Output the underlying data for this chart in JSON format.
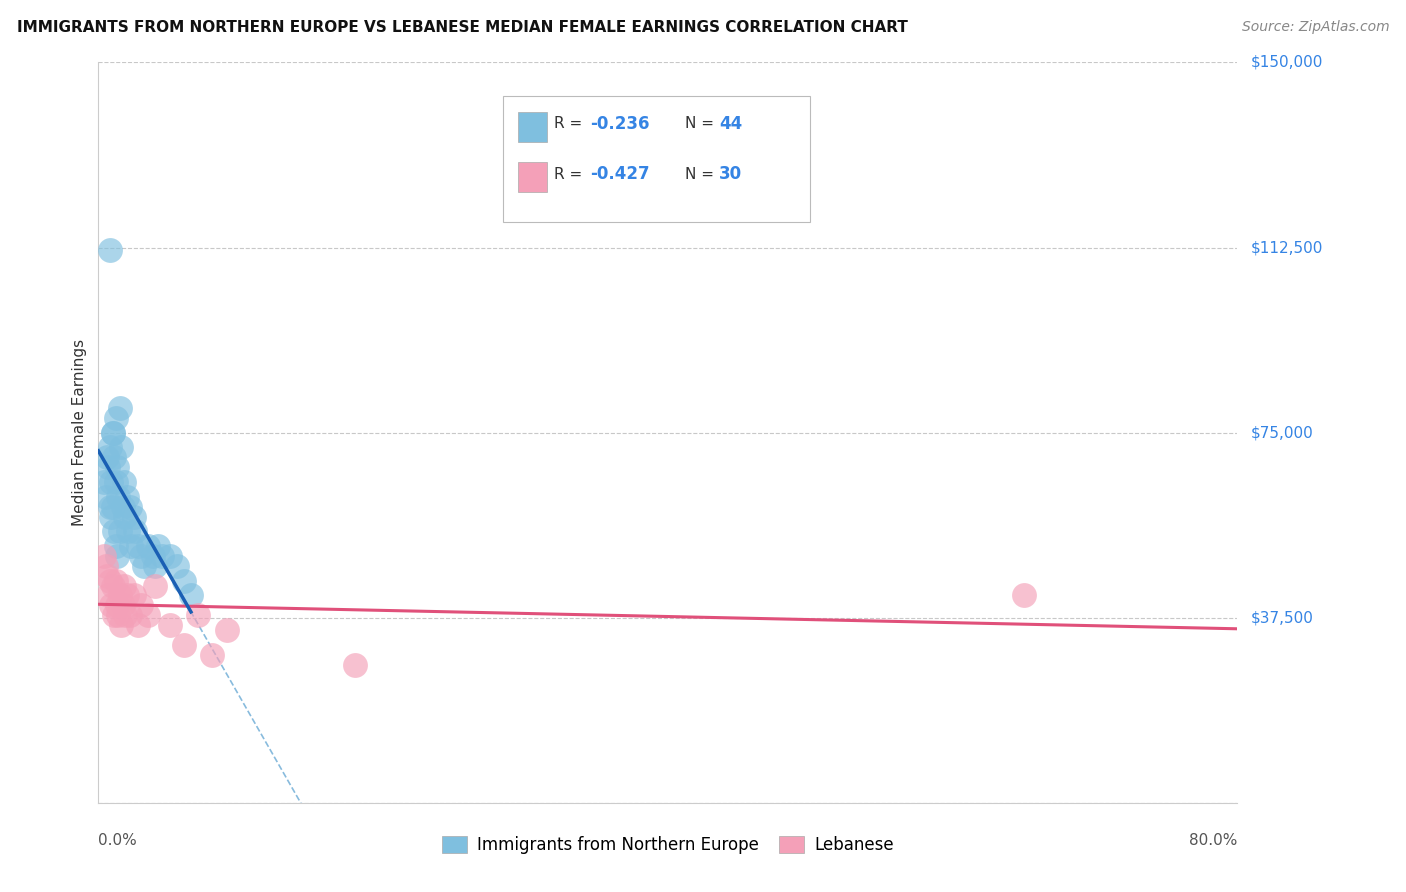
{
  "title": "IMMIGRANTS FROM NORTHERN EUROPE VS LEBANESE MEDIAN FEMALE EARNINGS CORRELATION CHART",
  "source": "Source: ZipAtlas.com",
  "ylabel": "Median Female Earnings",
  "xmin": 0.0,
  "xmax": 0.8,
  "ymin": 0,
  "ymax": 150000,
  "blue_R": -0.236,
  "blue_N": 44,
  "pink_R": -0.427,
  "pink_N": 30,
  "blue_color": "#7fbfdf",
  "pink_color": "#f4a0b8",
  "blue_line_color": "#1a5fb4",
  "pink_line_color": "#e0507a",
  "accent_color": "#3584e4",
  "legend_label_blue": "Immigrants from Northern Europe",
  "legend_label_pink": "Lebanese",
  "blue_points_x": [
    0.004,
    0.005,
    0.006,
    0.007,
    0.008,
    0.008,
    0.009,
    0.009,
    0.01,
    0.01,
    0.011,
    0.011,
    0.012,
    0.012,
    0.012,
    0.013,
    0.013,
    0.014,
    0.015,
    0.015,
    0.016,
    0.017,
    0.018,
    0.019,
    0.02,
    0.021,
    0.022,
    0.023,
    0.025,
    0.026,
    0.028,
    0.03,
    0.032,
    0.035,
    0.038,
    0.04,
    0.042,
    0.045,
    0.05,
    0.055,
    0.06,
    0.065,
    0.008,
    0.01
  ],
  "blue_points_y": [
    65000,
    62000,
    70000,
    68000,
    72000,
    60000,
    65000,
    58000,
    75000,
    60000,
    70000,
    55000,
    78000,
    65000,
    52000,
    68000,
    50000,
    62000,
    80000,
    55000,
    72000,
    60000,
    65000,
    58000,
    62000,
    55000,
    60000,
    52000,
    58000,
    55000,
    52000,
    50000,
    48000,
    52000,
    50000,
    48000,
    52000,
    50000,
    50000,
    48000,
    45000,
    42000,
    112000,
    75000
  ],
  "pink_points_x": [
    0.004,
    0.005,
    0.006,
    0.007,
    0.008,
    0.009,
    0.01,
    0.011,
    0.012,
    0.013,
    0.014,
    0.015,
    0.016,
    0.017,
    0.018,
    0.019,
    0.02,
    0.022,
    0.025,
    0.028,
    0.03,
    0.035,
    0.04,
    0.05,
    0.06,
    0.07,
    0.08,
    0.09,
    0.65,
    0.18
  ],
  "pink_points_y": [
    50000,
    48000,
    46000,
    42000,
    45000,
    40000,
    44000,
    38000,
    45000,
    40000,
    38000,
    42000,
    36000,
    40000,
    44000,
    38000,
    42000,
    38000,
    42000,
    36000,
    40000,
    38000,
    44000,
    36000,
    32000,
    38000,
    30000,
    35000,
    42000,
    28000
  ],
  "ytick_positions": [
    0,
    37500,
    75000,
    112500,
    150000
  ],
  "ytick_labels": [
    "",
    "$37,500",
    "$75,000",
    "$112,500",
    "$150,000"
  ],
  "background_color": "#ffffff",
  "grid_color": "#c8c8c8"
}
